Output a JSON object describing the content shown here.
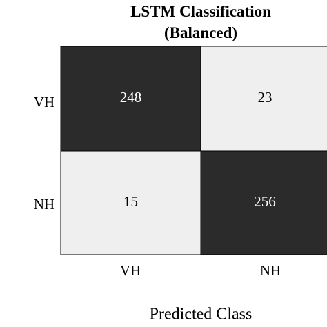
{
  "chart_data": {
    "type": "heatmap",
    "title_lines": [
      "LSTM Classification",
      "(Balanced)"
    ],
    "xlabel": "Predicted Class",
    "ylabel": "",
    "x_categories": [
      "VH",
      "NH"
    ],
    "y_categories": [
      "VH",
      "NH"
    ],
    "values": [
      [
        248,
        23
      ],
      [
        15,
        256
      ]
    ],
    "colors": {
      "high": "#2b2b2b",
      "low": "#efefef",
      "text_on_high": "#ffffff",
      "text_on_low": "#000000",
      "border": "#000000"
    }
  }
}
